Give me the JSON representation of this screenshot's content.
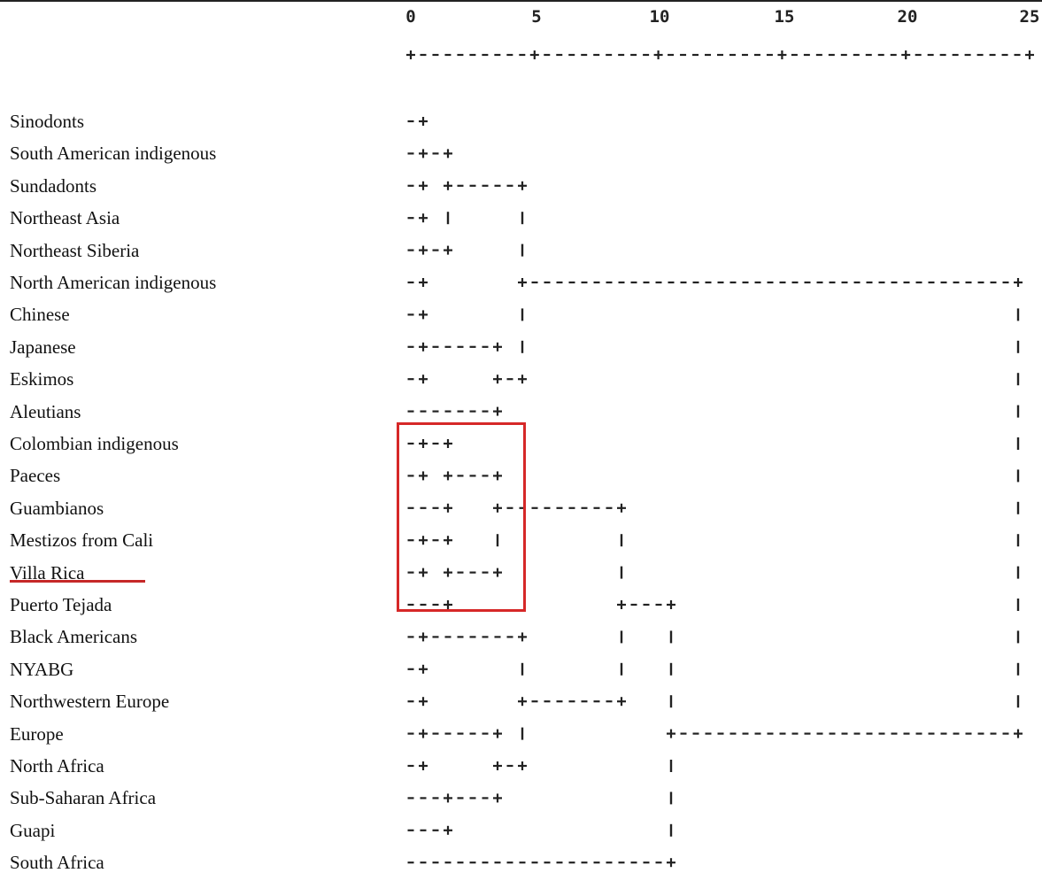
{
  "scale": {
    "ticks": [
      "0",
      "5",
      "10",
      "15",
      "20",
      "25"
    ],
    "ruler": "+---------+---------+---------+---------+---------+"
  },
  "labels": [
    "Sinodonts",
    "South American indigenous",
    "Sundadonts",
    "Northeast Asia",
    "Northeast Siberia",
    "North American indigenous",
    "Chinese",
    "Japanese",
    "Eskimos",
    "Aleutians",
    "Colombian indigenous",
    "Paeces",
    "Guambianos",
    "Mestizos from Cali",
    "Villa Rica",
    "Puerto Tejada",
    "Black Americans",
    "NYABG",
    "Northwestern Europe",
    "Europe",
    "North Africa",
    "Sub-Saharan Africa",
    "Guapi",
    "South Africa"
  ],
  "dendrogram": [
    "-+",
    "-+-+",
    "-+ +-----+",
    "-+ |     |",
    "-+-+     |",
    "-+       +---------------------------------------+",
    "-+       |                                       |",
    "-+-----+ |                                       |",
    "-+     +-+                                       |",
    "-------+                                         |",
    "-+-+                                             |",
    "-+ +---+                                         |",
    "---+   +---------+                               |",
    "-+-+   |         |                               |",
    "-+ +---+         |                               |",
    "---+             +---+                           |",
    "-+-------+       |   |                           |",
    "-+       |       |   |                           |",
    "-+       +-------+   |                           |",
    "-+-----+ |           +---------------------------+",
    "-+     +-+           |",
    "---+---+             |",
    "---+                 |",
    "---------------------+"
  ],
  "highlight": {
    "color": "#d62828",
    "boxed_rows": [
      "Colombian indigenous",
      "Paeces",
      "Guambianos",
      "Mestizos from Cali",
      "Villa Rica",
      "Puerto Tejada"
    ],
    "underlined_row": "Villa Rica"
  }
}
